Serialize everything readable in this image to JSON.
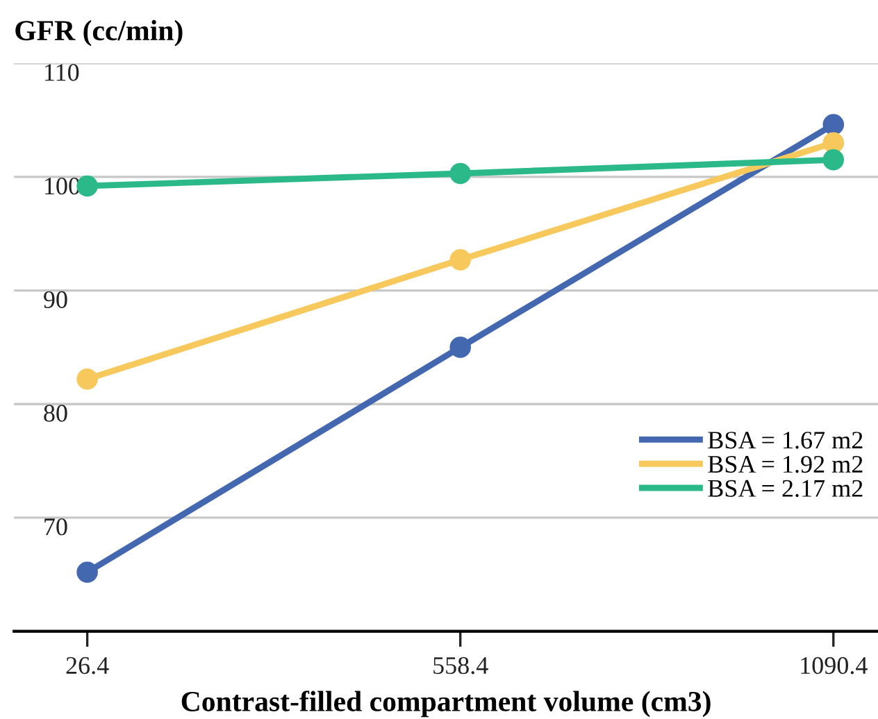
{
  "chart_data": {
    "type": "line",
    "ylabel": "GFR (cc/min)",
    "xlabel": "Contrast-filled compartment volume (cm3)",
    "x": [
      26.4,
      558.4,
      1090.4
    ],
    "series": [
      {
        "name": "BSA = 1.67 m2",
        "color": "#4468b0",
        "values": [
          65.2,
          85.0,
          104.6
        ]
      },
      {
        "name": "BSA = 1.92 m2",
        "color": "#f7c85c",
        "values": [
          82.2,
          92.7,
          103.0
        ]
      },
      {
        "name": "BSA = 2.17 m2",
        "color": "#2bb98a",
        "values": [
          99.2,
          100.3,
          101.5
        ]
      }
    ],
    "xlim": [
      -78,
      1154
    ],
    "xticks": [
      26.4,
      558.4,
      1090.4
    ],
    "ylim": [
      60,
      110
    ],
    "yticks": [
      {
        "value": 60,
        "label": null
      },
      70,
      80,
      90,
      100,
      110
    ],
    "grid": "y",
    "legend": "bottom right",
    "marker": "circle",
    "line_style": "solid"
  }
}
